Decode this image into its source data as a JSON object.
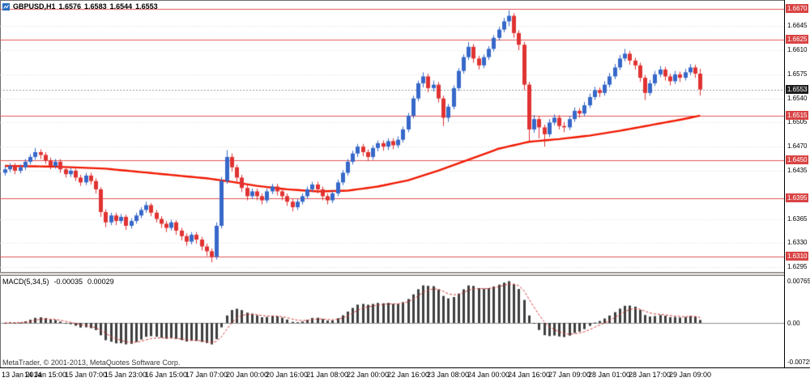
{
  "window": {
    "symbol_timeframe": "GBPUSD,H1",
    "open": "1.6576",
    "high": "1.6583",
    "low": "1.6544",
    "close": "1.6553"
  },
  "indicator": {
    "name": "MACD(5,34,5)",
    "value_main": "-0.00035",
    "value_signal": "0.00029"
  },
  "footer": {
    "copyright": "MetaTrader, © 2001-2013, MetaQuotes Software Corp."
  },
  "axes": {
    "price_ticks": [
      "1.6645",
      "1.6610",
      "1.6575",
      "1.6540",
      "1.6505",
      "1.6470",
      "1.6435",
      "1.6365",
      "1.6330",
      "1.6295"
    ],
    "level_labels": [
      "1.6670",
      "1.6625",
      "1.6515",
      "1.6450",
      "1.6395",
      "1.6310"
    ],
    "current_price": "1.6553",
    "macd_ticks": [
      "0.00765",
      "0.00",
      "-0.00725"
    ],
    "time_labels": [
      "13 Jan 2014",
      "14 Jan 15:00",
      "15 Jan 07:00",
      "15 Jan 23:00",
      "16 Jan 15:00",
      "17 Jan 07:00",
      "20 Jan 00:00",
      "20 Jan 16:00",
      "21 Jan 08:00",
      "22 Jan 00:00",
      "22 Jan 16:00",
      "23 Jan 08:00",
      "24 Jan 00:00",
      "24 Jan 16:00",
      "27 Jan 09:00",
      "28 Jan 01:00",
      "28 Jan 17:00",
      "29 Jan 09:00"
    ]
  },
  "colors": {
    "background": "#ffffff",
    "candle_up": "#3668C9",
    "candle_down": "#E03232",
    "ma_line": "#F01800",
    "level_line": "#E05555",
    "level_label_bg": "#D94444",
    "current_label_bg": "#1F1F1F",
    "bid_line": "#9B9B9B",
    "grid": "#DBDBDB",
    "zero_line": "#8E8E8E",
    "macd_hist": "#3F3F3F",
    "macd_signal": "#D43A3A",
    "axis_text": "#000000"
  },
  "chart_data": [
    {
      "type": "candlestick",
      "title": "GBPUSD,H1 1.6576 1.6583 1.6544 1.6553",
      "symbol": "GBPUSD",
      "timeframe": "H1",
      "y_range": [
        1.6288,
        1.6683
      ],
      "y_ticks": [
        1.6645,
        1.661,
        1.6575,
        1.654,
        1.6505,
        1.647,
        1.6435,
        1.6365,
        1.633,
        1.6295
      ],
      "horizontal_levels": [
        1.667,
        1.6625,
        1.6515,
        1.645,
        1.6395,
        1.631
      ],
      "bid_price": 1.6553,
      "current_ohlc": [
        1.6576,
        1.6583,
        1.6544,
        1.6553
      ],
      "x_labels": [
        "13 Jan 2014",
        "14 Jan 15:00",
        "15 Jan 07:00",
        "15 Jan 23:00",
        "16 Jan 15:00",
        "17 Jan 07:00",
        "20 Jan 00:00",
        "20 Jan 16:00",
        "21 Jan 08:00",
        "22 Jan 00:00",
        "22 Jan 16:00",
        "23 Jan 08:00",
        "24 Jan 00:00",
        "24 Jan 16:00",
        "27 Jan 09:00",
        "28 Jan 01:00",
        "28 Jan 17:00",
        "29 Jan 09:00"
      ],
      "x_label_bars": [
        0,
        8,
        16,
        24,
        32,
        40,
        48,
        56,
        64,
        72,
        80,
        88,
        96,
        104,
        112,
        120,
        128,
        136
      ],
      "ma_line": {
        "name": "red-moving-average",
        "anchors": [
          [
            0,
            1.6442
          ],
          [
            10,
            1.6441
          ],
          [
            20,
            1.6438
          ],
          [
            30,
            1.6431
          ],
          [
            40,
            1.6424
          ],
          [
            45,
            1.6419
          ],
          [
            50,
            1.6413
          ],
          [
            56,
            1.6408
          ],
          [
            62,
            1.6405
          ],
          [
            68,
            1.6406
          ],
          [
            74,
            1.6412
          ],
          [
            80,
            1.6421
          ],
          [
            86,
            1.6435
          ],
          [
            92,
            1.6451
          ],
          [
            98,
            1.6467
          ],
          [
            104,
            1.6477
          ],
          [
            110,
            1.6481
          ],
          [
            116,
            1.6486
          ],
          [
            122,
            1.6493
          ],
          [
            128,
            1.6501
          ],
          [
            134,
            1.6509
          ],
          [
            138,
            1.6515
          ]
        ]
      },
      "candles": [
        [
          1.6432,
          1.6441,
          1.6428,
          1.6437
        ],
        [
          1.6437,
          1.6446,
          1.6433,
          1.6442
        ],
        [
          1.6442,
          1.6446,
          1.643,
          1.6435
        ],
        [
          1.6435,
          1.6444,
          1.6431,
          1.644
        ],
        [
          1.644,
          1.6452,
          1.6436,
          1.6448
        ],
        [
          1.6448,
          1.6459,
          1.6444,
          1.6455
        ],
        [
          1.6455,
          1.6468,
          1.6451,
          1.6462
        ],
        [
          1.6462,
          1.6466,
          1.6452,
          1.6458
        ],
        [
          1.6458,
          1.6462,
          1.6445,
          1.645
        ],
        [
          1.645,
          1.6454,
          1.6437,
          1.6442
        ],
        [
          1.6442,
          1.6452,
          1.6438,
          1.6448
        ],
        [
          1.6448,
          1.6452,
          1.6432,
          1.6437
        ],
        [
          1.6437,
          1.6441,
          1.6425,
          1.643
        ],
        [
          1.643,
          1.6439,
          1.6426,
          1.6435
        ],
        [
          1.6435,
          1.6438,
          1.642,
          1.6425
        ],
        [
          1.6425,
          1.6429,
          1.6413,
          1.6418
        ],
        [
          1.6418,
          1.6432,
          1.6414,
          1.6428
        ],
        [
          1.6428,
          1.6432,
          1.6415,
          1.642
        ],
        [
          1.642,
          1.6424,
          1.6402,
          1.6408
        ],
        [
          1.6408,
          1.6411,
          1.6368,
          1.6375
        ],
        [
          1.6375,
          1.6379,
          1.6353,
          1.636
        ],
        [
          1.636,
          1.6374,
          1.6356,
          1.637
        ],
        [
          1.637,
          1.6374,
          1.6356,
          1.6362
        ],
        [
          1.6362,
          1.6372,
          1.6358,
          1.6368
        ],
        [
          1.6368,
          1.6371,
          1.6349,
          1.6355
        ],
        [
          1.6355,
          1.6366,
          1.6351,
          1.6362
        ],
        [
          1.6362,
          1.6374,
          1.6358,
          1.637
        ],
        [
          1.637,
          1.6382,
          1.6366,
          1.6378
        ],
        [
          1.6378,
          1.639,
          1.6374,
          1.6385
        ],
        [
          1.6385,
          1.6388,
          1.6369,
          1.6374
        ],
        [
          1.6374,
          1.6378,
          1.636,
          1.6365
        ],
        [
          1.6365,
          1.6369,
          1.6352,
          1.6358
        ],
        [
          1.6358,
          1.6362,
          1.6346,
          1.6352
        ],
        [
          1.6352,
          1.6364,
          1.6348,
          1.636
        ],
        [
          1.636,
          1.6363,
          1.6342,
          1.6348
        ],
        [
          1.6348,
          1.6352,
          1.6334,
          1.634
        ],
        [
          1.634,
          1.6344,
          1.6326,
          1.6332
        ],
        [
          1.6332,
          1.6346,
          1.6328,
          1.6342
        ],
        [
          1.6342,
          1.6346,
          1.6329,
          1.6335
        ],
        [
          1.6335,
          1.6339,
          1.6319,
          1.6325
        ],
        [
          1.6325,
          1.6329,
          1.6311,
          1.6318
        ],
        [
          1.6318,
          1.6322,
          1.6302,
          1.631
        ],
        [
          1.631,
          1.636,
          1.6306,
          1.6355
        ],
        [
          1.6355,
          1.6426,
          1.6351,
          1.642
        ],
        [
          1.642,
          1.6465,
          1.6416,
          1.6455
        ],
        [
          1.6455,
          1.646,
          1.6434,
          1.644
        ],
        [
          1.644,
          1.6444,
          1.6419,
          1.6425
        ],
        [
          1.6425,
          1.6429,
          1.6404,
          1.641
        ],
        [
          1.641,
          1.6414,
          1.6392,
          1.6398
        ],
        [
          1.6398,
          1.6409,
          1.6394,
          1.6405
        ],
        [
          1.6405,
          1.6409,
          1.6392,
          1.6398
        ],
        [
          1.6398,
          1.6402,
          1.6386,
          1.6392
        ],
        [
          1.6392,
          1.6409,
          1.6388,
          1.6405
        ],
        [
          1.6405,
          1.6416,
          1.6401,
          1.6412
        ],
        [
          1.6412,
          1.6416,
          1.6399,
          1.6405
        ],
        [
          1.6405,
          1.6409,
          1.6392,
          1.6398
        ],
        [
          1.6398,
          1.6402,
          1.6384,
          1.639
        ],
        [
          1.639,
          1.6394,
          1.6376,
          1.6382
        ],
        [
          1.6382,
          1.6394,
          1.6378,
          1.639
        ],
        [
          1.639,
          1.6402,
          1.6386,
          1.6398
        ],
        [
          1.6398,
          1.6412,
          1.6394,
          1.6408
        ],
        [
          1.6408,
          1.6419,
          1.6404,
          1.6415
        ],
        [
          1.6415,
          1.6419,
          1.6402,
          1.6408
        ],
        [
          1.6408,
          1.6412,
          1.6392,
          1.6398
        ],
        [
          1.6398,
          1.6402,
          1.6386,
          1.6392
        ],
        [
          1.6392,
          1.6406,
          1.6388,
          1.6402
        ],
        [
          1.6402,
          1.6422,
          1.6398,
          1.6418
        ],
        [
          1.6418,
          1.6436,
          1.6414,
          1.6432
        ],
        [
          1.6432,
          1.6452,
          1.6428,
          1.6448
        ],
        [
          1.6448,
          1.6464,
          1.6444,
          1.646
        ],
        [
          1.646,
          1.6474,
          1.6455,
          1.647
        ],
        [
          1.647,
          1.6474,
          1.6456,
          1.6462
        ],
        [
          1.6462,
          1.6466,
          1.6449,
          1.6455
        ],
        [
          1.6455,
          1.6472,
          1.6451,
          1.6468
        ],
        [
          1.6468,
          1.6479,
          1.6463,
          1.6475
        ],
        [
          1.6475,
          1.6479,
          1.6464,
          1.647
        ],
        [
          1.647,
          1.6482,
          1.6465,
          1.6478
        ],
        [
          1.6478,
          1.6482,
          1.6466,
          1.6472
        ],
        [
          1.6472,
          1.6485,
          1.6468,
          1.648
        ],
        [
          1.648,
          1.6499,
          1.6476,
          1.6495
        ],
        [
          1.6495,
          1.6519,
          1.6491,
          1.6515
        ],
        [
          1.6515,
          1.6544,
          1.6511,
          1.654
        ],
        [
          1.654,
          1.6566,
          1.6536,
          1.6562
        ],
        [
          1.6562,
          1.6578,
          1.6556,
          1.6572
        ],
        [
          1.6572,
          1.6576,
          1.6549,
          1.6555
        ],
        [
          1.6555,
          1.6566,
          1.655,
          1.656
        ],
        [
          1.656,
          1.6564,
          1.6534,
          1.654
        ],
        [
          1.654,
          1.6544,
          1.65,
          1.6512
        ],
        [
          1.6512,
          1.6532,
          1.6506,
          1.6528
        ],
        [
          1.6528,
          1.6559,
          1.6524,
          1.6555
        ],
        [
          1.6555,
          1.6584,
          1.6551,
          1.658
        ],
        [
          1.658,
          1.6604,
          1.6576,
          1.66
        ],
        [
          1.66,
          1.6622,
          1.6596,
          1.6615
        ],
        [
          1.6615,
          1.6619,
          1.6592,
          1.6598
        ],
        [
          1.6598,
          1.6602,
          1.6582,
          1.6588
        ],
        [
          1.6588,
          1.6604,
          1.6584,
          1.66
        ],
        [
          1.66,
          1.6616,
          1.6596,
          1.6612
        ],
        [
          1.6612,
          1.6632,
          1.6608,
          1.6628
        ],
        [
          1.6628,
          1.6644,
          1.6624,
          1.664
        ],
        [
          1.664,
          1.6657,
          1.6636,
          1.6652
        ],
        [
          1.6652,
          1.6668,
          1.6645,
          1.666
        ],
        [
          1.666,
          1.6664,
          1.6628,
          1.6635
        ],
        [
          1.6635,
          1.6639,
          1.661,
          1.6618
        ],
        [
          1.6618,
          1.6622,
          1.6552,
          1.656
        ],
        [
          1.656,
          1.6564,
          1.6478,
          1.6495
        ],
        [
          1.6495,
          1.6516,
          1.649,
          1.651
        ],
        [
          1.651,
          1.6514,
          1.6482,
          1.6498
        ],
        [
          1.6498,
          1.6502,
          1.647,
          1.6488
        ],
        [
          1.6488,
          1.651,
          1.6484,
          1.6505
        ],
        [
          1.6505,
          1.6517,
          1.6501,
          1.6512
        ],
        [
          1.6512,
          1.6516,
          1.6495,
          1.65
        ],
        [
          1.65,
          1.6506,
          1.6491,
          1.6498
        ],
        [
          1.6498,
          1.6515,
          1.6494,
          1.651
        ],
        [
          1.651,
          1.6527,
          1.6506,
          1.6522
        ],
        [
          1.6522,
          1.6526,
          1.6512,
          1.6518
        ],
        [
          1.6518,
          1.6535,
          1.6514,
          1.653
        ],
        [
          1.653,
          1.6547,
          1.6526,
          1.6542
        ],
        [
          1.6542,
          1.6557,
          1.6538,
          1.6552
        ],
        [
          1.6552,
          1.6556,
          1.6542,
          1.6548
        ],
        [
          1.6548,
          1.6565,
          1.6544,
          1.656
        ],
        [
          1.656,
          1.6577,
          1.6556,
          1.6572
        ],
        [
          1.6572,
          1.659,
          1.6568,
          1.6585
        ],
        [
          1.6585,
          1.6603,
          1.6581,
          1.6598
        ],
        [
          1.6598,
          1.6612,
          1.6594,
          1.6605
        ],
        [
          1.6605,
          1.6609,
          1.6589,
          1.6595
        ],
        [
          1.6595,
          1.6599,
          1.6582,
          1.6588
        ],
        [
          1.6588,
          1.6592,
          1.6564,
          1.657
        ],
        [
          1.657,
          1.6574,
          1.6538,
          1.6548
        ],
        [
          1.6548,
          1.6567,
          1.6544,
          1.6562
        ],
        [
          1.6562,
          1.658,
          1.6558,
          1.6575
        ],
        [
          1.6575,
          1.6587,
          1.6571,
          1.6582
        ],
        [
          1.6582,
          1.6586,
          1.6566,
          1.6572
        ],
        [
          1.6572,
          1.6576,
          1.6559,
          1.6565
        ],
        [
          1.6565,
          1.658,
          1.6561,
          1.6575
        ],
        [
          1.6575,
          1.6579,
          1.6564,
          1.657
        ],
        [
          1.657,
          1.6583,
          1.6566,
          1.6578
        ],
        [
          1.6578,
          1.659,
          1.6574,
          1.6585
        ],
        [
          1.6585,
          1.6589,
          1.657,
          1.6576
        ],
        [
          1.6576,
          1.6583,
          1.6544,
          1.6553
        ]
      ]
    },
    {
      "type": "bar",
      "title": "MACD(5,34,5)",
      "params": [
        5,
        34,
        5
      ],
      "axis_labels": [
        "0.00765",
        "0.00",
        "-0.00725"
      ],
      "display_range": [
        -0.00725,
        0.00765
      ],
      "last_values": [
        -0.00035,
        0.00029
      ],
      "note": "histogram = EMA5 - EMA34 of candle closes above; red dashed signal = EMA5 of histogram"
    }
  ]
}
